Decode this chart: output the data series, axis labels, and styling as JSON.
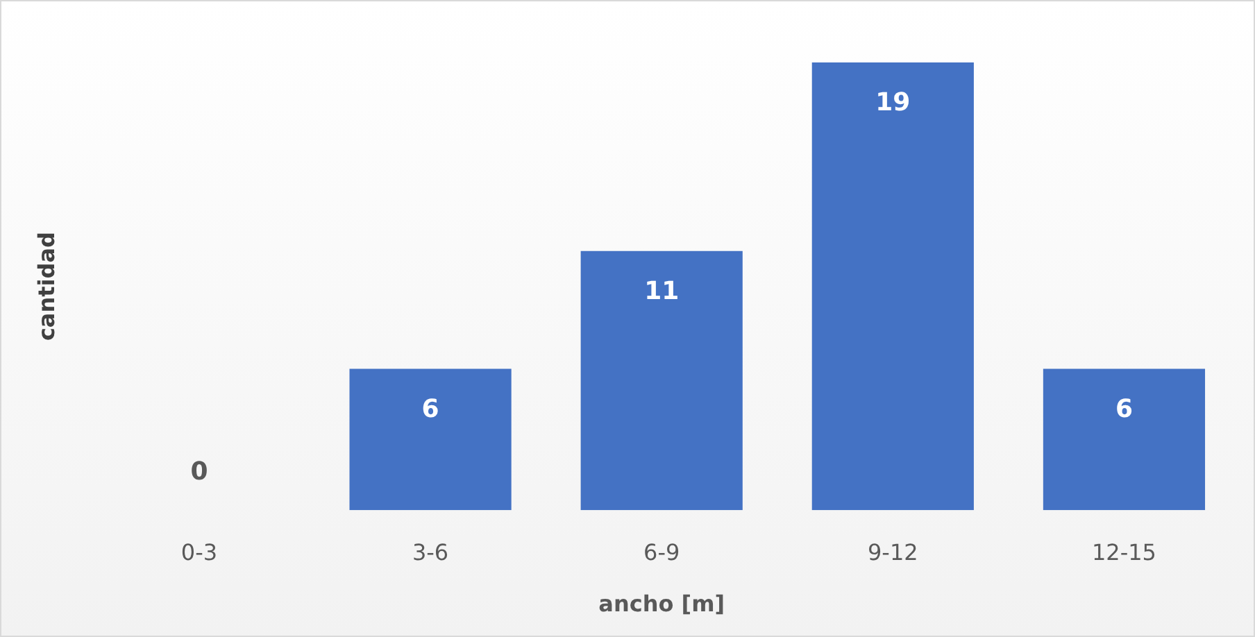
{
  "chart_data": {
    "type": "bar",
    "xlabel": "ancho [m]",
    "ylabel": "cantidad",
    "categories": [
      "0-3",
      "3-6",
      "6-9",
      "9-12",
      "12-15"
    ],
    "values": [
      0,
      6,
      11,
      19,
      6
    ],
    "color": "#4472c4",
    "data_labels": true,
    "grid": false,
    "legend": false
  }
}
